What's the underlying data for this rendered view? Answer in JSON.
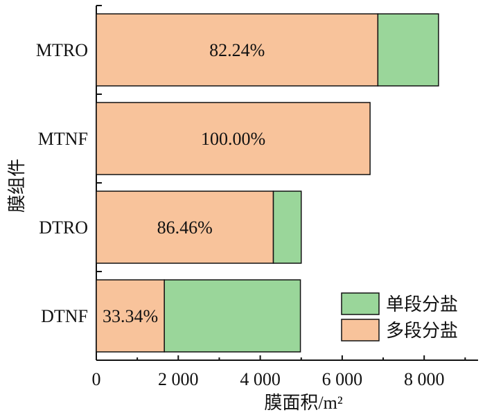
{
  "chart_data": {
    "type": "bar",
    "orientation": "horizontal",
    "stacked": true,
    "categories": [
      "MTRO",
      "MTNF",
      "DTRO",
      "DTNF"
    ],
    "series": [
      {
        "name": "多段分盐",
        "values": [
          6870,
          6680,
          4320,
          1660
        ],
        "color": "#f8c39b"
      },
      {
        "name": "单段分盐",
        "values": [
          1480,
          0,
          680,
          3320
        ],
        "color": "#9ad69a"
      }
    ],
    "bar_labels": [
      "82.24%",
      "100.00%",
      "86.46%",
      "33.34%"
    ],
    "legend_order": [
      "单段分盐",
      "多段分盐"
    ],
    "xlabel": "膜面积/m²",
    "ylabel": "膜组件",
    "xlim": [
      0,
      9000
    ],
    "xticks": [
      0,
      2000,
      4000,
      6000,
      8000
    ],
    "xtick_labels": [
      "0",
      "2 000",
      "4 000",
      "6 000",
      "8 000"
    ],
    "grid": false,
    "legend_position": "bottom-right"
  }
}
